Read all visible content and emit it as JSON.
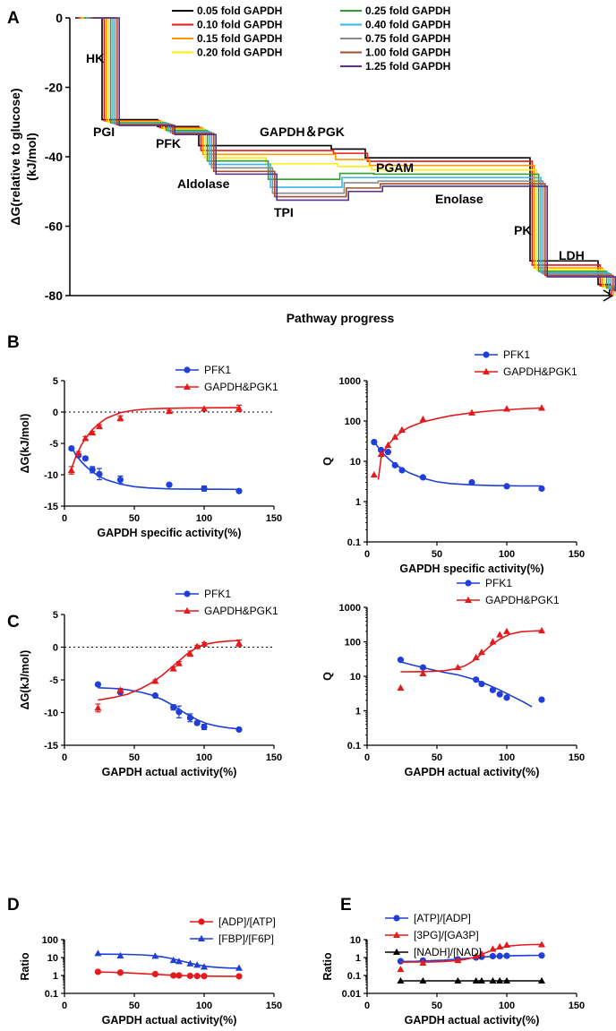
{
  "figure": {
    "panel_labels": [
      "A",
      "B",
      "C",
      "D",
      "E"
    ]
  },
  "chart_data": [
    {
      "id": "A",
      "type": "line",
      "title": "",
      "xlabel": "Pathway progress",
      "ylabel": "ΔG(relative to glucose)\n(kJ/mol)",
      "ylabel_lines": [
        "ΔG(relative to glucose)",
        "(kJ/mol)"
      ],
      "ylim": [
        -80,
        0
      ],
      "yticks": [
        0,
        -20,
        -40,
        -60,
        -80
      ],
      "steps": [
        "HK",
        "PGI",
        "PFK",
        "Aldolase",
        "TPI",
        "GAPDH&PGK",
        "PGAM",
        "Enolase",
        "PK",
        "LDH"
      ],
      "annotations": [
        "HK",
        "PGI",
        "PFK",
        "Aldolase",
        "TPI",
        "GAPDH＆PGK",
        "PGAM",
        "Enolase",
        "PK",
        "LDH"
      ],
      "series": [
        {
          "name": "0.05 fold GAPDH",
          "color": "#000000",
          "values": [
            0,
            -29.3,
            -31.3,
            -36.8,
            -36.8,
            -37.8,
            -40.3,
            -40.3,
            -70.0,
            -76.8
          ]
        },
        {
          "name": "0.10 fold GAPDH",
          "color": "#e41a1c",
          "values": [
            0,
            -29.6,
            -31.6,
            -38.2,
            -38.2,
            -39.0,
            -41.3,
            -41.3,
            -71.2,
            -77.2
          ]
        },
        {
          "name": "0.15 fold GAPDH",
          "color": "#ff9900",
          "values": [
            0,
            -29.8,
            -31.8,
            -39.3,
            -39.3,
            -40.8,
            -42.5,
            -42.5,
            -72.0,
            -77.4
          ]
        },
        {
          "name": "0.20 fold GAPDH",
          "color": "#ffee00",
          "values": [
            0,
            -30.0,
            -32.1,
            -40.3,
            -42.0,
            -42.8,
            -43.8,
            -43.8,
            -72.6,
            -77.6
          ]
        },
        {
          "name": "0.25 fold GAPDH",
          "color": "#2ca02c",
          "values": [
            0,
            -30.2,
            -32.4,
            -41.2,
            -46.5,
            -44.8,
            -45.0,
            -45.0,
            -73.0,
            -77.8
          ]
        },
        {
          "name": "0.40 fold GAPDH",
          "color": "#33b5f0",
          "values": [
            0,
            -30.4,
            -32.7,
            -42.2,
            -48.8,
            -46.0,
            -46.0,
            -46.0,
            -73.4,
            -78.0
          ]
        },
        {
          "name": "0.75 fold GAPDH",
          "color": "#888888",
          "values": [
            0,
            -30.6,
            -33.0,
            -43.2,
            -50.5,
            -47.5,
            -47.0,
            -47.0,
            -73.8,
            -78.2
          ]
        },
        {
          "name": "1.00 fold GAPDH",
          "color": "#a0522d",
          "values": [
            0,
            -30.8,
            -33.3,
            -44.2,
            -51.5,
            -49.0,
            -47.8,
            -47.8,
            -74.2,
            -78.4
          ]
        },
        {
          "name": "1.25 fold GAPDH",
          "color": "#5b2c91",
          "values": [
            0,
            -31.0,
            -33.6,
            -45.0,
            -52.5,
            -50.0,
            -48.5,
            -48.5,
            -74.6,
            -78.6
          ]
        }
      ]
    },
    {
      "id": "B-left",
      "type": "scatter",
      "xlabel": "GAPDH specific activity(%)",
      "ylabel": "ΔG(kJ/mol)",
      "xlim": [
        0,
        150
      ],
      "xticks": [
        0,
        50,
        100,
        150
      ],
      "ylim": [
        -15,
        5
      ],
      "yticks": [
        5,
        0,
        -5,
        -10,
        -15
      ],
      "reference_line": 0,
      "series": [
        {
          "name": "PFK1",
          "color": "#1f3fd8",
          "marker": "circle",
          "x": [
            5,
            10,
            15,
            20,
            25,
            40,
            75,
            100,
            125
          ],
          "y": [
            -5.8,
            -6.9,
            -7.4,
            -9.2,
            -9.9,
            -10.8,
            -11.6,
            -12.2,
            -12.6
          ],
          "err": [
            0,
            0.3,
            0.3,
            0.5,
            0.9,
            0.6,
            0.2,
            0.4,
            0.2
          ],
          "fit_x": [
            5,
            8,
            12,
            16,
            20,
            25,
            30,
            40,
            50,
            60,
            75,
            90,
            110,
            125
          ],
          "fit_y": [
            -5.6,
            -6.8,
            -7.9,
            -8.8,
            -9.5,
            -10.3,
            -10.8,
            -11.5,
            -11.9,
            -12.1,
            -12.25,
            -12.3,
            -12.32,
            -12.33
          ]
        },
        {
          "name": "GAPDH&PGK1",
          "color": "#e41a1c",
          "marker": "triangle",
          "x": [
            5,
            10,
            15,
            20,
            25,
            40,
            75,
            100,
            125
          ],
          "y": [
            -9.3,
            -6.6,
            -4.2,
            -3.3,
            -2.3,
            -1.0,
            0.1,
            0.5,
            0.6
          ],
          "err": [
            0.6,
            0.3,
            0.3,
            0.2,
            0.3,
            0.4,
            0.2,
            0.2,
            0.5
          ],
          "fit_x": [
            5,
            8,
            12,
            16,
            20,
            25,
            30,
            40,
            50,
            60,
            75,
            90,
            110,
            125
          ],
          "fit_y": [
            -9.0,
            -7.2,
            -5.3,
            -3.9,
            -2.8,
            -1.8,
            -1.0,
            -0.1,
            0.3,
            0.5,
            0.6,
            0.65,
            0.68,
            0.7
          ]
        }
      ]
    },
    {
      "id": "B-right",
      "type": "scatter",
      "xlabel": "GAPDH specific activity(%)",
      "ylabel": "Q",
      "xlim": [
        0,
        150
      ],
      "xticks": [
        0,
        50,
        100,
        150
      ],
      "yscale": "log",
      "ylim": [
        0.1,
        1000
      ],
      "yticks": [
        1000,
        100,
        10,
        1,
        0.1
      ],
      "series": [
        {
          "name": "PFK1",
          "color": "#1f3fd8",
          "marker": "circle",
          "x": [
            5,
            10,
            15,
            20,
            25,
            40,
            75,
            100,
            125
          ],
          "y": [
            30,
            19,
            17,
            8,
            6,
            4,
            3,
            2.4,
            2.1
          ],
          "fit_x": [
            5,
            8,
            12,
            16,
            20,
            25,
            30,
            40,
            50,
            60,
            75,
            90,
            110,
            125
          ],
          "fit_y": [
            31,
            22,
            15,
            11,
            8.5,
            6.5,
            5.2,
            3.8,
            3.1,
            2.8,
            2.6,
            2.5,
            2.45,
            2.45
          ]
        },
        {
          "name": "GAPDH&PGK1",
          "color": "#e41a1c",
          "marker": "triangle",
          "x": [
            5,
            10,
            15,
            20,
            25,
            40,
            75,
            100,
            125
          ],
          "y": [
            4.6,
            15,
            25,
            40,
            60,
            110,
            160,
            200,
            210
          ],
          "fit_x": [
            8,
            10,
            12,
            16,
            20,
            25,
            30,
            40,
            50,
            60,
            75,
            90,
            110,
            125
          ],
          "fit_y": [
            3.5,
            12,
            18,
            28,
            40,
            55,
            70,
            95,
            115,
            135,
            160,
            180,
            200,
            210
          ]
        }
      ]
    },
    {
      "id": "C-left",
      "type": "scatter",
      "xlabel": "GAPDH actual activity(%)",
      "ylabel": "ΔG(kJ/mol)",
      "xlim": [
        0,
        150
      ],
      "xticks": [
        0,
        50,
        100,
        150
      ],
      "ylim": [
        -15,
        5
      ],
      "yticks": [
        5,
        0,
        -5,
        -10,
        -15
      ],
      "reference_line": 0,
      "series": [
        {
          "name": "PFK1",
          "color": "#1f3fd8",
          "marker": "circle",
          "x": [
            24,
            40,
            65,
            78,
            82,
            90,
            95,
            100,
            125
          ],
          "y": [
            -5.7,
            -6.9,
            -7.4,
            -9.2,
            -9.9,
            -10.8,
            -11.6,
            -12.2,
            -12.6
          ],
          "err": [
            0,
            0,
            0,
            0.4,
            0.9,
            0.6,
            0.2,
            0.4,
            0.2
          ],
          "fit_x": [
            24,
            35,
            45,
            55,
            62,
            70,
            76,
            82,
            88,
            95,
            102,
            110,
            118,
            125
          ],
          "fit_y": [
            -6.2,
            -6.3,
            -6.5,
            -6.9,
            -7.3,
            -8.0,
            -8.7,
            -9.5,
            -10.3,
            -11.1,
            -11.7,
            -12.1,
            -12.35,
            -12.5
          ]
        },
        {
          "name": "GAPDH&PGK1",
          "color": "#e41a1c",
          "marker": "triangle",
          "x": [
            24,
            40,
            65,
            78,
            82,
            90,
            95,
            100,
            125
          ],
          "y": [
            -9.3,
            -6.6,
            -5.2,
            -3.3,
            -2.5,
            -1.0,
            0.1,
            0.5,
            0.6
          ],
          "err": [
            0.6,
            0.3,
            0.2,
            0.3,
            0.3,
            0.4,
            0.2,
            0.2,
            0.5
          ],
          "fit_x": [
            24,
            35,
            45,
            55,
            62,
            70,
            76,
            82,
            88,
            95,
            102,
            110,
            118,
            125
          ],
          "fit_y": [
            -8.1,
            -7.7,
            -7.2,
            -6.3,
            -5.5,
            -4.3,
            -3.2,
            -2.1,
            -1.0,
            0.0,
            0.5,
            0.8,
            0.95,
            1.0
          ]
        }
      ]
    },
    {
      "id": "C-right",
      "type": "scatter",
      "xlabel": "GAPDH actual activity(%)",
      "ylabel": "Q",
      "xlim": [
        0,
        150
      ],
      "xticks": [
        0,
        50,
        100,
        150
      ],
      "yscale": "log",
      "ylim": [
        0.1,
        1000
      ],
      "yticks": [
        1000,
        100,
        10,
        1,
        0.1
      ],
      "series": [
        {
          "name": "PFK1",
          "color": "#1f3fd8",
          "marker": "circle",
          "x": [
            24,
            40,
            78,
            82,
            90,
            95,
            100,
            125
          ],
          "y": [
            30,
            18,
            8,
            6,
            4,
            3,
            2.4,
            2.1
          ],
          "fit_x": [
            24,
            35,
            45,
            55,
            65,
            75,
            85,
            95,
            105,
            112,
            118
          ],
          "fit_y": [
            26,
            20,
            16,
            13,
            11,
            8.5,
            6,
            4,
            2.5,
            1.8,
            1.3
          ]
        },
        {
          "name": "GAPDH&PGK1",
          "color": "#e41a1c",
          "marker": "triangle",
          "x": [
            24,
            40,
            65,
            78,
            82,
            90,
            95,
            100,
            125
          ],
          "y": [
            4.6,
            12,
            18,
            35,
            50,
            100,
            160,
            200,
            210
          ],
          "fit_x": [
            24,
            35,
            45,
            55,
            62,
            70,
            76,
            82,
            88,
            95,
            102,
            110,
            118,
            125
          ],
          "fit_y": [
            13.5,
            13.6,
            13.8,
            14.5,
            16,
            20,
            28,
            45,
            75,
            120,
            165,
            195,
            205,
            210
          ]
        }
      ]
    },
    {
      "id": "D",
      "type": "scatter",
      "xlabel": "GAPDH actual activity(%)",
      "ylabel": "Ratio",
      "xlim": [
        0,
        150
      ],
      "xticks": [
        0,
        50,
        100,
        150
      ],
      "yscale": "log",
      "ylim": [
        0.1,
        100
      ],
      "yticks": [
        100,
        10,
        1,
        0.1
      ],
      "series": [
        {
          "name": "[ADP]/[ATP]",
          "color": "#e41a1c",
          "marker": "circle",
          "x": [
            24,
            40,
            65,
            78,
            82,
            90,
            95,
            100,
            125
          ],
          "y": [
            1.6,
            1.45,
            1.2,
            1.0,
            1.0,
            0.95,
            0.93,
            0.92,
            0.9
          ],
          "fit_x": [
            24,
            35,
            45,
            55,
            65,
            75,
            85,
            95,
            105,
            115,
            125
          ],
          "fit_y": [
            1.55,
            1.5,
            1.4,
            1.28,
            1.16,
            1.05,
            0.98,
            0.94,
            0.91,
            0.9,
            0.89
          ]
        },
        {
          "name": "[FBP]/[F6P]",
          "color": "#1f3fd8",
          "marker": "triangle",
          "x": [
            24,
            40,
            65,
            78,
            82,
            90,
            95,
            100,
            125
          ],
          "y": [
            17,
            12.5,
            12,
            7,
            6,
            4.5,
            3.8,
            3.0,
            2.6
          ],
          "fit_x": [
            24,
            35,
            45,
            55,
            62,
            70,
            76,
            82,
            88,
            95,
            102,
            110,
            118,
            125
          ],
          "fit_y": [
            15.5,
            15.3,
            15,
            14.2,
            13,
            11,
            9,
            7,
            5.3,
            4,
            3.2,
            2.8,
            2.6,
            2.55
          ]
        }
      ]
    },
    {
      "id": "E",
      "type": "scatter",
      "xlabel": "GAPDH actual activity(%)",
      "ylabel": "Ratio",
      "xlim": [
        0,
        150
      ],
      "xticks": [
        0,
        50,
        100,
        150
      ],
      "yscale": "log",
      "ylim": [
        0.01,
        10
      ],
      "yticks": [
        10,
        1,
        0.1,
        0.01
      ],
      "series": [
        {
          "name": "[ATP]/[ADP]",
          "color": "#1f3fd8",
          "marker": "circle",
          "x": [
            24,
            40,
            65,
            78,
            82,
            90,
            95,
            100,
            125
          ],
          "y": [
            0.62,
            0.68,
            0.8,
            1.0,
            1.1,
            1.2,
            1.22,
            1.25,
            1.3
          ],
          "fit_x": [
            24,
            35,
            45,
            55,
            65,
            75,
            85,
            95,
            105,
            115,
            125
          ],
          "fit_y": [
            0.6,
            0.62,
            0.66,
            0.72,
            0.82,
            0.95,
            1.1,
            1.2,
            1.27,
            1.31,
            1.33
          ]
        },
        {
          "name": "[3PG]/[GA3P]",
          "color": "#e41a1c",
          "marker": "triangle",
          "x": [
            24,
            40,
            65,
            78,
            82,
            90,
            95,
            100,
            125
          ],
          "y": [
            0.22,
            0.5,
            0.7,
            1.2,
            1.6,
            3.0,
            4.0,
            5.0,
            5.3
          ],
          "fit_x": [
            24,
            35,
            45,
            55,
            62,
            70,
            76,
            82,
            88,
            95,
            102,
            110,
            118,
            125
          ],
          "fit_y": [
            0.55,
            0.56,
            0.57,
            0.6,
            0.65,
            0.78,
            1.0,
            1.5,
            2.3,
            3.4,
            4.4,
            5.0,
            5.3,
            5.4
          ]
        },
        {
          "name": "[NADH]/[NAD]",
          "color": "#000000",
          "marker": "triangle",
          "x": [
            24,
            40,
            65,
            78,
            82,
            90,
            95,
            100,
            125
          ],
          "y": [
            0.05,
            0.05,
            0.05,
            0.05,
            0.05,
            0.05,
            0.05,
            0.05,
            0.05
          ],
          "fit_x": [
            24,
            125
          ],
          "fit_y": [
            0.05,
            0.05
          ]
        }
      ]
    }
  ]
}
